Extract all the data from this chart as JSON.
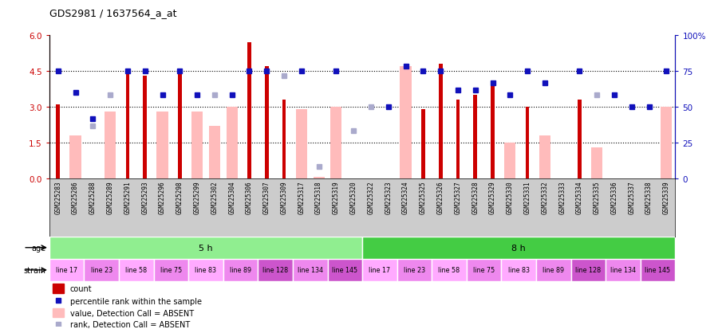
{
  "title": "GDS2981 / 1637564_a_at",
  "samples": [
    "GSM225283",
    "GSM225286",
    "GSM225288",
    "GSM225289",
    "GSM225291",
    "GSM225293",
    "GSM225296",
    "GSM225298",
    "GSM225299",
    "GSM225302",
    "GSM225304",
    "GSM225306",
    "GSM225307",
    "GSM225309",
    "GSM225317",
    "GSM225318",
    "GSM225319",
    "GSM225320",
    "GSM225322",
    "GSM225323",
    "GSM225324",
    "GSM225325",
    "GSM225326",
    "GSM225327",
    "GSM225328",
    "GSM225329",
    "GSM225330",
    "GSM225331",
    "GSM225332",
    "GSM225333",
    "GSM225334",
    "GSM225335",
    "GSM225336",
    "GSM225337",
    "GSM225338",
    "GSM225339"
  ],
  "count_values": [
    3.1,
    null,
    null,
    null,
    4.4,
    4.3,
    null,
    4.5,
    null,
    null,
    null,
    5.7,
    4.7,
    3.3,
    null,
    null,
    null,
    null,
    null,
    null,
    null,
    2.9,
    4.8,
    3.3,
    3.5,
    4.1,
    null,
    3.0,
    null,
    null,
    3.3,
    null,
    null,
    null,
    null,
    null
  ],
  "absent_bar_values": [
    null,
    1.8,
    null,
    2.8,
    null,
    null,
    2.8,
    null,
    2.8,
    2.2,
    3.0,
    null,
    null,
    null,
    2.9,
    0.07,
    3.0,
    null,
    null,
    null,
    4.7,
    null,
    null,
    null,
    null,
    null,
    1.5,
    null,
    1.8,
    null,
    null,
    1.3,
    null,
    null,
    null,
    3.0
  ],
  "rank_values": [
    4.5,
    3.6,
    2.5,
    null,
    4.5,
    4.5,
    3.5,
    4.5,
    3.5,
    null,
    3.5,
    4.5,
    4.5,
    null,
    4.5,
    null,
    4.5,
    null,
    null,
    3.0,
    4.7,
    4.5,
    4.5,
    3.7,
    3.7,
    4.0,
    3.5,
    4.5,
    4.0,
    null,
    4.5,
    null,
    3.5,
    3.0,
    3.0,
    4.5
  ],
  "absent_rank_values": [
    null,
    null,
    2.2,
    3.5,
    null,
    null,
    null,
    null,
    null,
    3.5,
    null,
    null,
    null,
    4.3,
    null,
    0.5,
    null,
    2.0,
    3.0,
    null,
    null,
    null,
    null,
    null,
    null,
    null,
    null,
    null,
    null,
    null,
    null,
    3.5,
    null,
    null,
    null,
    null
  ],
  "age_groups": [
    {
      "label": "5 h",
      "start": 0,
      "end": 18,
      "color": "#90ee90"
    },
    {
      "label": "8 h",
      "start": 18,
      "end": 36,
      "color": "#44cc44"
    }
  ],
  "strain_groups": [
    {
      "label": "line 17",
      "start": 0,
      "end": 2,
      "color": "#ffaaff"
    },
    {
      "label": "line 23",
      "start": 2,
      "end": 4,
      "color": "#ee88ee"
    },
    {
      "label": "line 58",
      "start": 4,
      "end": 6,
      "color": "#ffaaff"
    },
    {
      "label": "line 75",
      "start": 6,
      "end": 8,
      "color": "#ee88ee"
    },
    {
      "label": "line 83",
      "start": 8,
      "end": 10,
      "color": "#ffaaff"
    },
    {
      "label": "line 89",
      "start": 10,
      "end": 12,
      "color": "#ee88ee"
    },
    {
      "label": "line 128",
      "start": 12,
      "end": 14,
      "color": "#cc55cc"
    },
    {
      "label": "line 134",
      "start": 14,
      "end": 16,
      "color": "#ee88ee"
    },
    {
      "label": "line 145",
      "start": 16,
      "end": 18,
      "color": "#cc55cc"
    },
    {
      "label": "line 17",
      "start": 18,
      "end": 20,
      "color": "#ffaaff"
    },
    {
      "label": "line 23",
      "start": 20,
      "end": 22,
      "color": "#ee88ee"
    },
    {
      "label": "line 58",
      "start": 22,
      "end": 24,
      "color": "#ffaaff"
    },
    {
      "label": "line 75",
      "start": 24,
      "end": 26,
      "color": "#ee88ee"
    },
    {
      "label": "line 83",
      "start": 26,
      "end": 28,
      "color": "#ffaaff"
    },
    {
      "label": "line 89",
      "start": 28,
      "end": 30,
      "color": "#ee88ee"
    },
    {
      "label": "line 128",
      "start": 30,
      "end": 32,
      "color": "#cc55cc"
    },
    {
      "label": "line 134",
      "start": 32,
      "end": 34,
      "color": "#ee88ee"
    },
    {
      "label": "line 145",
      "start": 34,
      "end": 36,
      "color": "#cc55cc"
    }
  ],
  "ylim_left": [
    0,
    6
  ],
  "ylim_right": [
    0,
    100
  ],
  "yticks_left": [
    0,
    1.5,
    3.0,
    4.5,
    6.0
  ],
  "yticks_right": [
    0,
    25,
    50,
    75,
    100
  ],
  "count_color": "#cc0000",
  "absent_bar_color": "#ffbbbb",
  "rank_color": "#1111bb",
  "absent_rank_color": "#aaaacc",
  "xtick_bg_color": "#cccccc"
}
